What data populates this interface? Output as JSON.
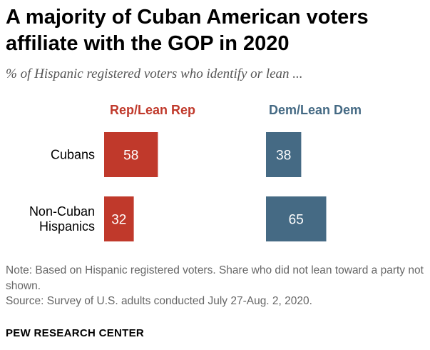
{
  "title": "A majority of Cuban American voters affiliate with the GOP in 2020",
  "subtitle": "% of Hispanic registered voters who identify or lean ...",
  "note": "Note: Based on Hispanic registered voters. Share who did not lean toward a party not shown.",
  "source": "Source: Survey of U.S. adults conducted July 27-Aug. 2, 2020.",
  "brand": "PEW RESEARCH CENTER",
  "colors": {
    "rep": "#c0392b",
    "dem": "#456a84",
    "label_text": "#ffffff"
  },
  "chart_data": {
    "type": "bar",
    "orientation": "horizontal",
    "categories": [
      "Cubans",
      "Non-Cuban\nHispanics"
    ],
    "series": [
      {
        "name": "Rep/Lean Rep",
        "values": [
          58,
          32
        ]
      },
      {
        "name": "Dem/Lean Dem",
        "values": [
          38,
          65
        ]
      }
    ],
    "xlim": [
      0,
      100
    ],
    "grid": false,
    "legend": "top",
    "title": "A majority of Cuban American voters affiliate with the GOP in 2020",
    "xlabel": "",
    "ylabel": ""
  }
}
